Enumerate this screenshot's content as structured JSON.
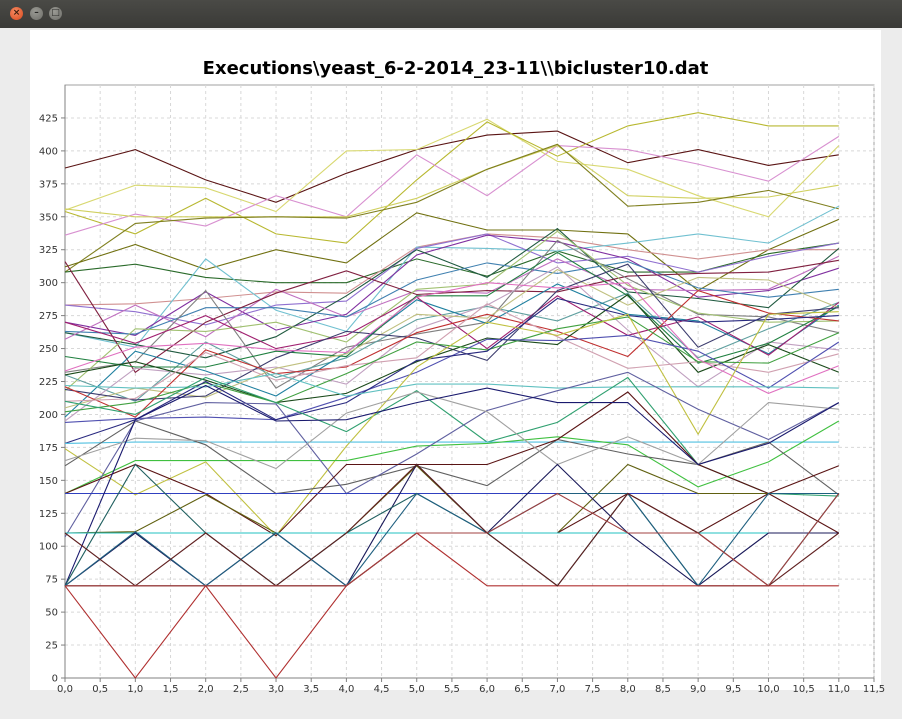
{
  "window": {
    "close_label": "×",
    "minimize_label": "–",
    "maximize_label": "□"
  },
  "chart_data": {
    "type": "line",
    "title": "Executions\\yeast_6-2-2014_23-11\\\\bicluster10.dat",
    "xlabel": "",
    "ylabel": "",
    "xlim": [
      0,
      11.5
    ],
    "ylim": [
      0,
      450
    ],
    "grid": true,
    "legend": "none",
    "x": [
      0,
      1,
      2,
      3,
      4,
      5,
      6,
      7,
      8,
      9,
      10,
      11
    ],
    "x_ticks": [
      "0,0",
      "0,5",
      "1,0",
      "1,5",
      "2,0",
      "2,5",
      "3,0",
      "3,5",
      "4,0",
      "4,5",
      "5,0",
      "5,5",
      "6,0",
      "6,5",
      "7,0",
      "7,5",
      "8,0",
      "8,5",
      "9,0",
      "9,5",
      "10,0",
      "10,5",
      "11,0",
      "11,5"
    ],
    "y_ticks": [
      0,
      25,
      50,
      75,
      100,
      125,
      150,
      175,
      200,
      225,
      250,
      275,
      300,
      325,
      350,
      375,
      400,
      425
    ],
    "series": [
      {
        "color": "#5a1414",
        "values": [
          387,
          401,
          378,
          361,
          383,
          401,
          412,
          415,
          391,
          401,
          389,
          397
        ]
      },
      {
        "color": "#d8d870",
        "values": [
          355,
          374,
          372,
          354,
          400,
          401,
          424,
          392,
          386,
          366,
          350,
          404
        ]
      },
      {
        "color": "#b8b830",
        "values": [
          354,
          337,
          364,
          337,
          330,
          378,
          422,
          396,
          419,
          429,
          419,
          419
        ]
      },
      {
        "color": "#d890d0",
        "values": [
          336,
          352,
          343,
          366,
          350,
          397,
          366,
          404,
          401,
          390,
          377,
          411
        ]
      },
      {
        "color": "#d0d060",
        "values": [
          356,
          350,
          350,
          350,
          350,
          364,
          386,
          404,
          366,
          364,
          365,
          374
        ]
      },
      {
        "color": "#808020",
        "values": [
          308,
          345,
          349,
          350,
          349,
          361,
          386,
          405,
          358,
          361,
          370,
          356
        ]
      },
      {
        "color": "#707010",
        "values": [
          312,
          329,
          310,
          325,
          315,
          353,
          340,
          340,
          337,
          294,
          325,
          348
        ]
      },
      {
        "color": "#2a6a2a",
        "values": [
          308,
          314,
          304,
          300,
          300,
          318,
          305,
          324,
          308,
          308,
          322,
          330
        ]
      },
      {
        "color": "#d09090",
        "values": [
          283,
          284,
          288,
          293,
          292,
          327,
          337,
          334,
          325,
          318,
          325,
          325
        ]
      },
      {
        "color": "#70c0d0",
        "values": [
          262,
          251,
          318,
          279,
          263,
          327,
          326,
          324,
          330,
          337,
          330,
          358
        ]
      },
      {
        "color": "#9070d0",
        "values": [
          283,
          278,
          268,
          283,
          286,
          326,
          337,
          315,
          320,
          308,
          320,
          330
        ]
      },
      {
        "color": "#8030a0",
        "values": [
          270,
          260,
          293,
          264,
          276,
          321,
          336,
          331,
          318,
          289,
          294,
          311
        ]
      },
      {
        "color": "#205a40",
        "values": [
          262,
          253,
          243,
          259,
          290,
          325,
          304,
          341,
          293,
          288,
          281,
          326
        ]
      },
      {
        "color": "#c070c0",
        "values": [
          257,
          283,
          259,
          295,
          274,
          294,
          292,
          318,
          295,
          294,
          295,
          320
        ]
      },
      {
        "color": "#4080b0",
        "values": [
          263,
          261,
          281,
          281,
          274,
          302,
          315,
          307,
          316,
          296,
          289,
          295
        ]
      },
      {
        "color": "#802040",
        "values": [
          316,
          232,
          270,
          292,
          309,
          291,
          294,
          293,
          305,
          307,
          308,
          317
        ]
      },
      {
        "color": "#808080",
        "values": [
          232,
          240,
          294,
          220,
          251,
          261,
          270,
          332,
          303,
          276,
          274,
          262
        ]
      },
      {
        "color": "#a0c070",
        "values": [
          218,
          265,
          263,
          270,
          255,
          295,
          299,
          339,
          298,
          277,
          270,
          271
        ]
      },
      {
        "color": "#60a0a0",
        "values": [
          230,
          210,
          255,
          228,
          243,
          272,
          282,
          271,
          292,
          243,
          265,
          285
        ]
      },
      {
        "color": "#c0a0c0",
        "values": [
          195,
          235,
          230,
          236,
          223,
          265,
          283,
          312,
          264,
          221,
          255,
          249
        ]
      },
      {
        "color": "#2080a0",
        "values": [
          198,
          248,
          233,
          214,
          247,
          287,
          269,
          299,
          276,
          271,
          246,
          283
        ]
      },
      {
        "color": "#a02070",
        "values": [
          270,
          254,
          275,
          250,
          260,
          289,
          250,
          290,
          260,
          274,
          245,
          285
        ]
      },
      {
        "color": "#208040",
        "values": [
          244,
          236,
          236,
          248,
          244,
          290,
          290,
          323,
          290,
          239,
          254,
          282
        ]
      },
      {
        "color": "#c0c080",
        "values": [
          205,
          220,
          213,
          235,
          246,
          276,
          273,
          310,
          283,
          304,
          302,
          281
        ]
      },
      {
        "color": "#3c3c6e",
        "values": [
          219,
          211,
          214,
          243,
          263,
          258,
          241,
          294,
          314,
          251,
          276,
          281
        ]
      },
      {
        "color": "#c03030",
        "values": [
          221,
          198,
          249,
          231,
          236,
          262,
          276,
          263,
          244,
          294,
          277,
          271
        ]
      },
      {
        "color": "#1a4a1a",
        "values": [
          230,
          240,
          226,
          209,
          216,
          240,
          258,
          253,
          291,
          232,
          253,
          232
        ]
      },
      {
        "color": "#d0a0b0",
        "values": [
          210,
          212,
          247,
          226,
          237,
          243,
          284,
          259,
          235,
          240,
          232,
          246
        ]
      },
      {
        "color": "#40a040",
        "values": [
          202,
          209,
          224,
          209,
          231,
          255,
          249,
          265,
          274,
          240,
          239,
          262
        ]
      },
      {
        "color": "#5050b0",
        "values": [
          194,
          197,
          198,
          196,
          213,
          232,
          257,
          256,
          260,
          248,
          220,
          255
        ]
      },
      {
        "color": "#e070c0",
        "values": [
          233,
          251,
          254,
          249,
          247,
          289,
          300,
          296,
          300,
          242,
          216,
          237
        ]
      },
      {
        "color": "#2a2a80",
        "values": [
          178,
          196,
          225,
          196,
          209,
          241,
          248,
          288,
          275,
          270,
          272,
          275
        ]
      },
      {
        "color": "#60c0c0",
        "values": [
          222,
          220,
          221,
          231,
          214,
          223,
          223,
          220,
          221,
          221,
          221,
          220
        ]
      },
      {
        "color": "#30a070",
        "values": [
          210,
          200,
          228,
          209,
          187,
          218,
          179,
          194,
          228,
          162,
          140,
          138
        ]
      },
      {
        "color": "#c0c040",
        "values": [
          174,
          139,
          164,
          108,
          176,
          236,
          270,
          260,
          276,
          185,
          276,
          278
        ]
      },
      {
        "color": "#50c0e0",
        "values": [
          178,
          179,
          179,
          179,
          179,
          179,
          179,
          179,
          179,
          179,
          179,
          179
        ]
      },
      {
        "color": "#40c040",
        "values": [
          140,
          165,
          165,
          165,
          165,
          176,
          178,
          183,
          177,
          145,
          164,
          195
        ]
      },
      {
        "color": "#606060",
        "values": [
          161,
          195,
          177,
          140,
          147,
          161,
          146,
          181,
          170,
          162,
          179,
          139
        ]
      },
      {
        "color": "#6060a0",
        "values": [
          107,
          195,
          209,
          208,
          140,
          170,
          203,
          218,
          232,
          204,
          181,
          209
        ]
      },
      {
        "color": "#5a1414",
        "values": [
          140,
          162,
          140,
          108,
          162,
          162,
          162,
          181,
          217,
          162,
          140,
          161
        ]
      },
      {
        "color": "#20e0e0",
        "values": [
          140,
          140,
          140,
          140,
          140,
          140,
          140,
          140,
          140,
          140,
          140,
          140
        ]
      },
      {
        "color": "#3040c0",
        "values": [
          140,
          140,
          140,
          140,
          140,
          140,
          140,
          140,
          140,
          140,
          140,
          140
        ]
      },
      {
        "color": "#a0a0a0",
        "values": [
          165,
          182,
          180,
          159,
          201,
          217,
          202,
          162,
          183,
          162,
          209,
          204
        ]
      },
      {
        "color": "#1a1a6e",
        "values": [
          70,
          196,
          222,
          195,
          196,
          209,
          220,
          209,
          209,
          162,
          178,
          209
        ]
      },
      {
        "color": "#606010",
        "values": [
          110,
          111,
          139,
          110,
          110,
          161,
          110,
          110,
          162,
          140,
          140,
          140
        ]
      },
      {
        "color": "#5a1414",
        "values": [
          70,
          70,
          70,
          70,
          70,
          110,
          110,
          110,
          140,
          110,
          140,
          110
        ]
      },
      {
        "color": "#20c0c0",
        "values": [
          110,
          110,
          110,
          110,
          110,
          110,
          110,
          110,
          110,
          110,
          110,
          110
        ]
      },
      {
        "color": "#1a1a5a",
        "values": [
          70,
          110,
          70,
          110,
          70,
          162,
          110,
          162,
          110,
          70,
          110,
          110
        ]
      },
      {
        "color": "#206060",
        "values": [
          70,
          162,
          110,
          70,
          110,
          140,
          110,
          70,
          140,
          70,
          70,
          140
        ]
      },
      {
        "color": "#206080",
        "values": [
          70,
          111,
          70,
          110,
          70,
          140,
          110,
          140,
          140,
          70,
          140,
          140
        ]
      },
      {
        "color": "#b03030",
        "values": [
          70,
          0,
          70,
          0,
          70,
          110,
          70,
          70,
          70,
          70,
          70,
          70
        ]
      },
      {
        "color": "#602020",
        "values": [
          110,
          70,
          110,
          70,
          110,
          162,
          110,
          70,
          140,
          110,
          70,
          110
        ]
      },
      {
        "color": "#a04040",
        "values": [
          70,
          70,
          70,
          70,
          70,
          110,
          110,
          140,
          110,
          110,
          70,
          140
        ]
      }
    ]
  }
}
